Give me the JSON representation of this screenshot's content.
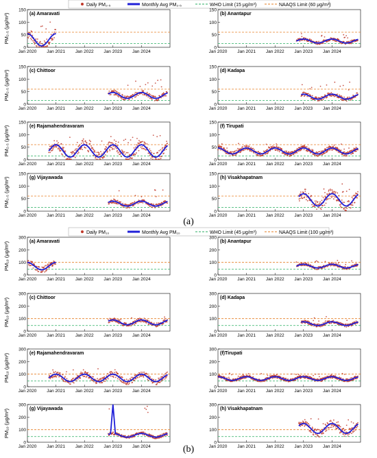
{
  "panels": [
    {
      "caption": "(a)",
      "legend": {
        "daily": "Daily PM₂.₅",
        "monthly": "Monthly Avg PM₂.₅",
        "who": "WHO Limit (15 μg/m³)",
        "naaqs": "NAAQS Limit (60 μg/m³)"
      },
      "ylabel": "PM₂.₅ (μg/m³)",
      "ylim": [
        0,
        150
      ],
      "yticks": [
        0,
        50,
        100,
        150
      ],
      "who_limit": 15,
      "naaqs_limit": 60,
      "subplots": [
        {
          "label": "(a) Amaravati",
          "start": "2020-01",
          "end": "2021-01",
          "base": 30,
          "amp": 25,
          "peak": 100,
          "dense": false
        },
        {
          "label": "(b) Anantapur",
          "start": "2022-10",
          "end": "2024-12",
          "base": 25,
          "amp": 8,
          "peak": 50,
          "dense": false
        },
        {
          "label": "(c) Chittoor",
          "start": "2022-11",
          "end": "2024-12",
          "base": 35,
          "amp": 12,
          "peak": 90,
          "dense": false
        },
        {
          "label": "(d) Kadapa",
          "start": "2022-12",
          "end": "2024-12",
          "base": 30,
          "amp": 10,
          "peak": 80,
          "dense": false
        },
        {
          "label": "(e) Rajamahendravaram",
          "start": "2020-10",
          "end": "2024-12",
          "base": 35,
          "amp": 25,
          "peak": 90,
          "dense": false
        },
        {
          "label": "(f) Tirupati",
          "start": "2020-01",
          "end": "2024-12",
          "base": 35,
          "amp": 12,
          "peak": 60,
          "dense": true
        },
        {
          "label": "(g) Vijayawada",
          "start": "2022-11",
          "end": "2024-12",
          "base": 30,
          "amp": 10,
          "peak": 80,
          "dense": false
        },
        {
          "label": "(h) Visakhapatnam",
          "start": "2022-11",
          "end": "2024-12",
          "base": 45,
          "amp": 25,
          "peak": 100,
          "dense": false
        }
      ]
    },
    {
      "caption": "(b)",
      "legend": {
        "daily": "Daily PM₁₀",
        "monthly": "Monthly Avg PM₁₀",
        "who": "WHO Limit (45 μg/m³)",
        "naaqs": "NAAQS Limit (100 μg/m³)"
      },
      "ylabel": "PM₁₀ (μg/m³)",
      "ylim": [
        0,
        300
      ],
      "yticks": [
        0,
        100,
        200,
        300
      ],
      "who_limit": 45,
      "naaqs_limit": 100,
      "subplots": [
        {
          "label": "(a) Amaravati",
          "start": "2020-01",
          "end": "2021-01",
          "base": 70,
          "amp": 30,
          "peak": 140,
          "dense": false
        },
        {
          "label": "(b) Anantapur",
          "start": "2022-10",
          "end": "2024-12",
          "base": 70,
          "amp": 15,
          "peak": 110,
          "dense": false
        },
        {
          "label": "(c) Chittoor",
          "start": "2022-11",
          "end": "2024-12",
          "base": 70,
          "amp": 20,
          "peak": 110,
          "dense": false
        },
        {
          "label": "(d) Kadapa",
          "start": "2022-12",
          "end": "2024-12",
          "base": 60,
          "amp": 15,
          "peak": 110,
          "dense": false
        },
        {
          "label": "(e) Rajamahendravaram",
          "start": "2020-10",
          "end": "2024-12",
          "base": 70,
          "amp": 30,
          "peak": 130,
          "dense": false
        },
        {
          "label": "(f)Tirupati",
          "start": "2020-01",
          "end": "2024-12",
          "base": 65,
          "amp": 15,
          "peak": 100,
          "dense": true
        },
        {
          "label": "(g) Vijayawada",
          "start": "2022-11",
          "end": "2024-12",
          "base": 55,
          "amp": 15,
          "peak": 320,
          "dense": false
        },
        {
          "label": "(h) Visakhapatnam",
          "start": "2022-11",
          "end": "2024-12",
          "base": 110,
          "amp": 40,
          "peak": 180,
          "dense": false
        }
      ]
    }
  ],
  "x_ticks": [
    "Jan 2020",
    "Jan 2021",
    "Jan 2022",
    "Jan 2023",
    "Jan 2024"
  ],
  "colors": {
    "daily": "#c0392b",
    "monthly": "#1f1fd8",
    "who": "#27ae60",
    "naaqs": "#e67e22"
  },
  "chart_data": {
    "type": "scatter",
    "x_range": [
      "2020-01",
      "2024-12"
    ],
    "series": [
      {
        "name": "Daily PM₂.₅"
      },
      {
        "name": "Monthly Avg PM₂.₅"
      },
      {
        "name": "WHO Limit (15 μg/m³)"
      },
      {
        "name": "NAAQS Limit (60 μg/m³)"
      },
      {
        "name": "Daily PM₁₀"
      },
      {
        "name": "Monthly Avg PM₁₀"
      },
      {
        "name": "WHO Limit (45 μg/m³)"
      },
      {
        "name": "NAAQS Limit (100 μg/m³)"
      }
    ]
  }
}
